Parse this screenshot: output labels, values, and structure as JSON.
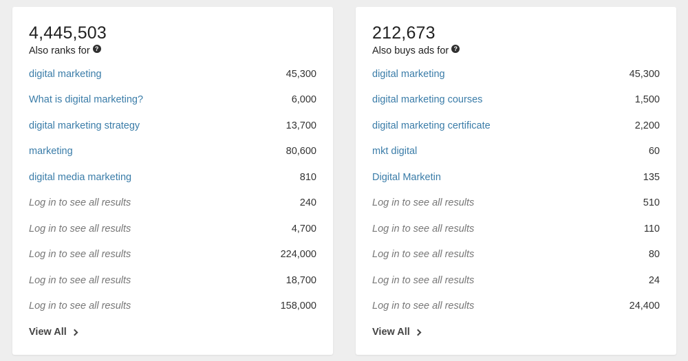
{
  "left": {
    "total": "4,445,503",
    "subtitle": "Also ranks for",
    "help_icon": "question-circle-icon",
    "rows": [
      {
        "keyword": "digital marketing",
        "value": "45,300",
        "locked": false
      },
      {
        "keyword": "What is digital marketing?",
        "value": "6,000",
        "locked": false
      },
      {
        "keyword": "digital marketing strategy",
        "value": "13,700",
        "locked": false
      },
      {
        "keyword": "marketing",
        "value": "80,600",
        "locked": false
      },
      {
        "keyword": "digital media marketing",
        "value": "810",
        "locked": false
      },
      {
        "keyword": "Log in to see all results",
        "value": "240",
        "locked": true
      },
      {
        "keyword": "Log in to see all results",
        "value": "4,700",
        "locked": true
      },
      {
        "keyword": "Log in to see all results",
        "value": "224,000",
        "locked": true
      },
      {
        "keyword": "Log in to see all results",
        "value": "18,700",
        "locked": true
      },
      {
        "keyword": "Log in to see all results",
        "value": "158,000",
        "locked": true
      }
    ],
    "view_all": "View All"
  },
  "right": {
    "total": "212,673",
    "subtitle": "Also buys ads for",
    "help_icon": "question-circle-icon",
    "rows": [
      {
        "keyword": "digital marketing",
        "value": "45,300",
        "locked": false
      },
      {
        "keyword": "digital marketing courses",
        "value": "1,500",
        "locked": false
      },
      {
        "keyword": "digital marketing certificate",
        "value": "2,200",
        "locked": false
      },
      {
        "keyword": "mkt digital",
        "value": "60",
        "locked": false
      },
      {
        "keyword": "Digital Marketin",
        "value": "135",
        "locked": false
      },
      {
        "keyword": "Log in to see all results",
        "value": "510",
        "locked": true
      },
      {
        "keyword": "Log in to see all results",
        "value": "110",
        "locked": true
      },
      {
        "keyword": "Log in to see all results",
        "value": "80",
        "locked": true
      },
      {
        "keyword": "Log in to see all results",
        "value": "24",
        "locked": true
      },
      {
        "keyword": "Log in to see all results",
        "value": "24,400",
        "locked": true
      }
    ],
    "view_all": "View All"
  },
  "colors": {
    "link": "#3a7ca8",
    "locked_text": "#777777",
    "background": "#eeeeee",
    "card": "#ffffff"
  }
}
